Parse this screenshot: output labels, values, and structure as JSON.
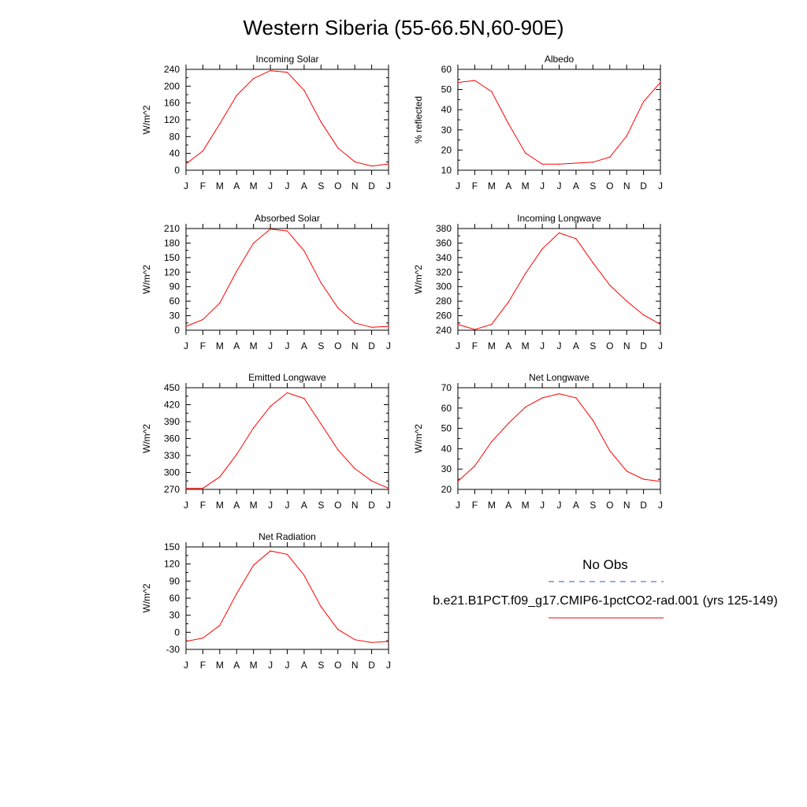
{
  "title": "Western Siberia (55-66.5N,60-90E)",
  "colors": {
    "model": "#ff0000",
    "obs": "#3b4fd8",
    "axis": "#000000"
  },
  "legend": {
    "obs_label": "No Obs",
    "model_label": "b.e21.B1PCT.f09_g17.CMIP6-1pctCO2-rad.001 (yrs 125-149)"
  },
  "chart_data": [
    {
      "type": "line",
      "title": "Incoming Solar",
      "ylabel": "W/m^2",
      "categories": [
        "J",
        "F",
        "M",
        "A",
        "M",
        "J",
        "J",
        "A",
        "S",
        "O",
        "N",
        "D",
        "J"
      ],
      "ylim": [
        0,
        240
      ],
      "yticks": [
        0,
        40,
        80,
        120,
        160,
        200,
        240
      ],
      "series": [
        {
          "values": [
            15,
            46,
            110,
            178,
            218,
            237,
            233,
            190,
            115,
            53,
            20,
            10,
            15
          ]
        }
      ]
    },
    {
      "type": "line",
      "title": "Albedo",
      "ylabel": "% reflected",
      "categories": [
        "J",
        "F",
        "M",
        "A",
        "M",
        "J",
        "J",
        "A",
        "S",
        "O",
        "N",
        "D",
        "J"
      ],
      "ylim": [
        10,
        60
      ],
      "yticks": [
        10,
        20,
        30,
        40,
        50,
        60
      ],
      "series": [
        {
          "values": [
            53.5,
            54.5,
            49,
            33,
            18.5,
            13,
            13,
            13.5,
            14,
            16.5,
            27,
            44,
            53.5
          ]
        }
      ]
    },
    {
      "type": "line",
      "title": "Absorbed Solar",
      "ylabel": "W/m^2",
      "categories": [
        "J",
        "F",
        "M",
        "A",
        "M",
        "J",
        "J",
        "A",
        "S",
        "O",
        "N",
        "D",
        "J"
      ],
      "ylim": [
        0,
        210
      ],
      "yticks": [
        0,
        30,
        60,
        90,
        120,
        150,
        180,
        210
      ],
      "series": [
        {
          "values": [
            8,
            22,
            56,
            122,
            180,
            209,
            205,
            164,
            98,
            46,
            15,
            6,
            8
          ]
        }
      ]
    },
    {
      "type": "line",
      "title": "Incoming Longwave",
      "ylabel": "W/m^2",
      "categories": [
        "J",
        "F",
        "M",
        "A",
        "M",
        "J",
        "J",
        "A",
        "S",
        "O",
        "N",
        "D",
        "J"
      ],
      "ylim": [
        240,
        380
      ],
      "yticks": [
        240,
        260,
        280,
        300,
        320,
        340,
        360,
        380
      ],
      "series": [
        {
          "values": [
            248,
            241,
            248,
            279,
            318,
            352,
            374,
            366,
            333,
            302,
            280,
            261,
            248
          ]
        }
      ]
    },
    {
      "type": "line",
      "title": "Emitted Longwave",
      "ylabel": "W/m^2",
      "categories": [
        "J",
        "F",
        "M",
        "A",
        "M",
        "J",
        "J",
        "A",
        "S",
        "O",
        "N",
        "D",
        "J"
      ],
      "ylim": [
        270,
        450
      ],
      "yticks": [
        270,
        300,
        330,
        360,
        390,
        420,
        450
      ],
      "series": [
        {
          "values": [
            272,
            272,
            292,
            332,
            379,
            417,
            441,
            431,
            386,
            340,
            307,
            285,
            272
          ]
        }
      ]
    },
    {
      "type": "line",
      "title": "Net Longwave",
      "ylabel": "W/m^2",
      "categories": [
        "J",
        "F",
        "M",
        "A",
        "M",
        "J",
        "J",
        "A",
        "S",
        "O",
        "N",
        "D",
        "J"
      ],
      "ylim": [
        20,
        70
      ],
      "yticks": [
        20,
        30,
        40,
        50,
        60,
        70
      ],
      "series": [
        {
          "values": [
            24,
            31.5,
            43.5,
            52.5,
            60.5,
            65,
            67,
            65,
            54,
            39,
            29,
            25,
            24
          ]
        }
      ]
    },
    {
      "type": "line",
      "title": "Net Radiation",
      "ylabel": "W/m^2",
      "categories": [
        "J",
        "F",
        "M",
        "A",
        "M",
        "J",
        "J",
        "A",
        "S",
        "O",
        "N",
        "D",
        "J"
      ],
      "ylim": [
        -30,
        150
      ],
      "yticks": [
        -30,
        0,
        30,
        60,
        90,
        120,
        150
      ],
      "series": [
        {
          "values": [
            -16,
            -10,
            12,
            68,
            118,
            143,
            137,
            100,
            45,
            5,
            -13,
            -18,
            -16
          ]
        }
      ]
    }
  ]
}
